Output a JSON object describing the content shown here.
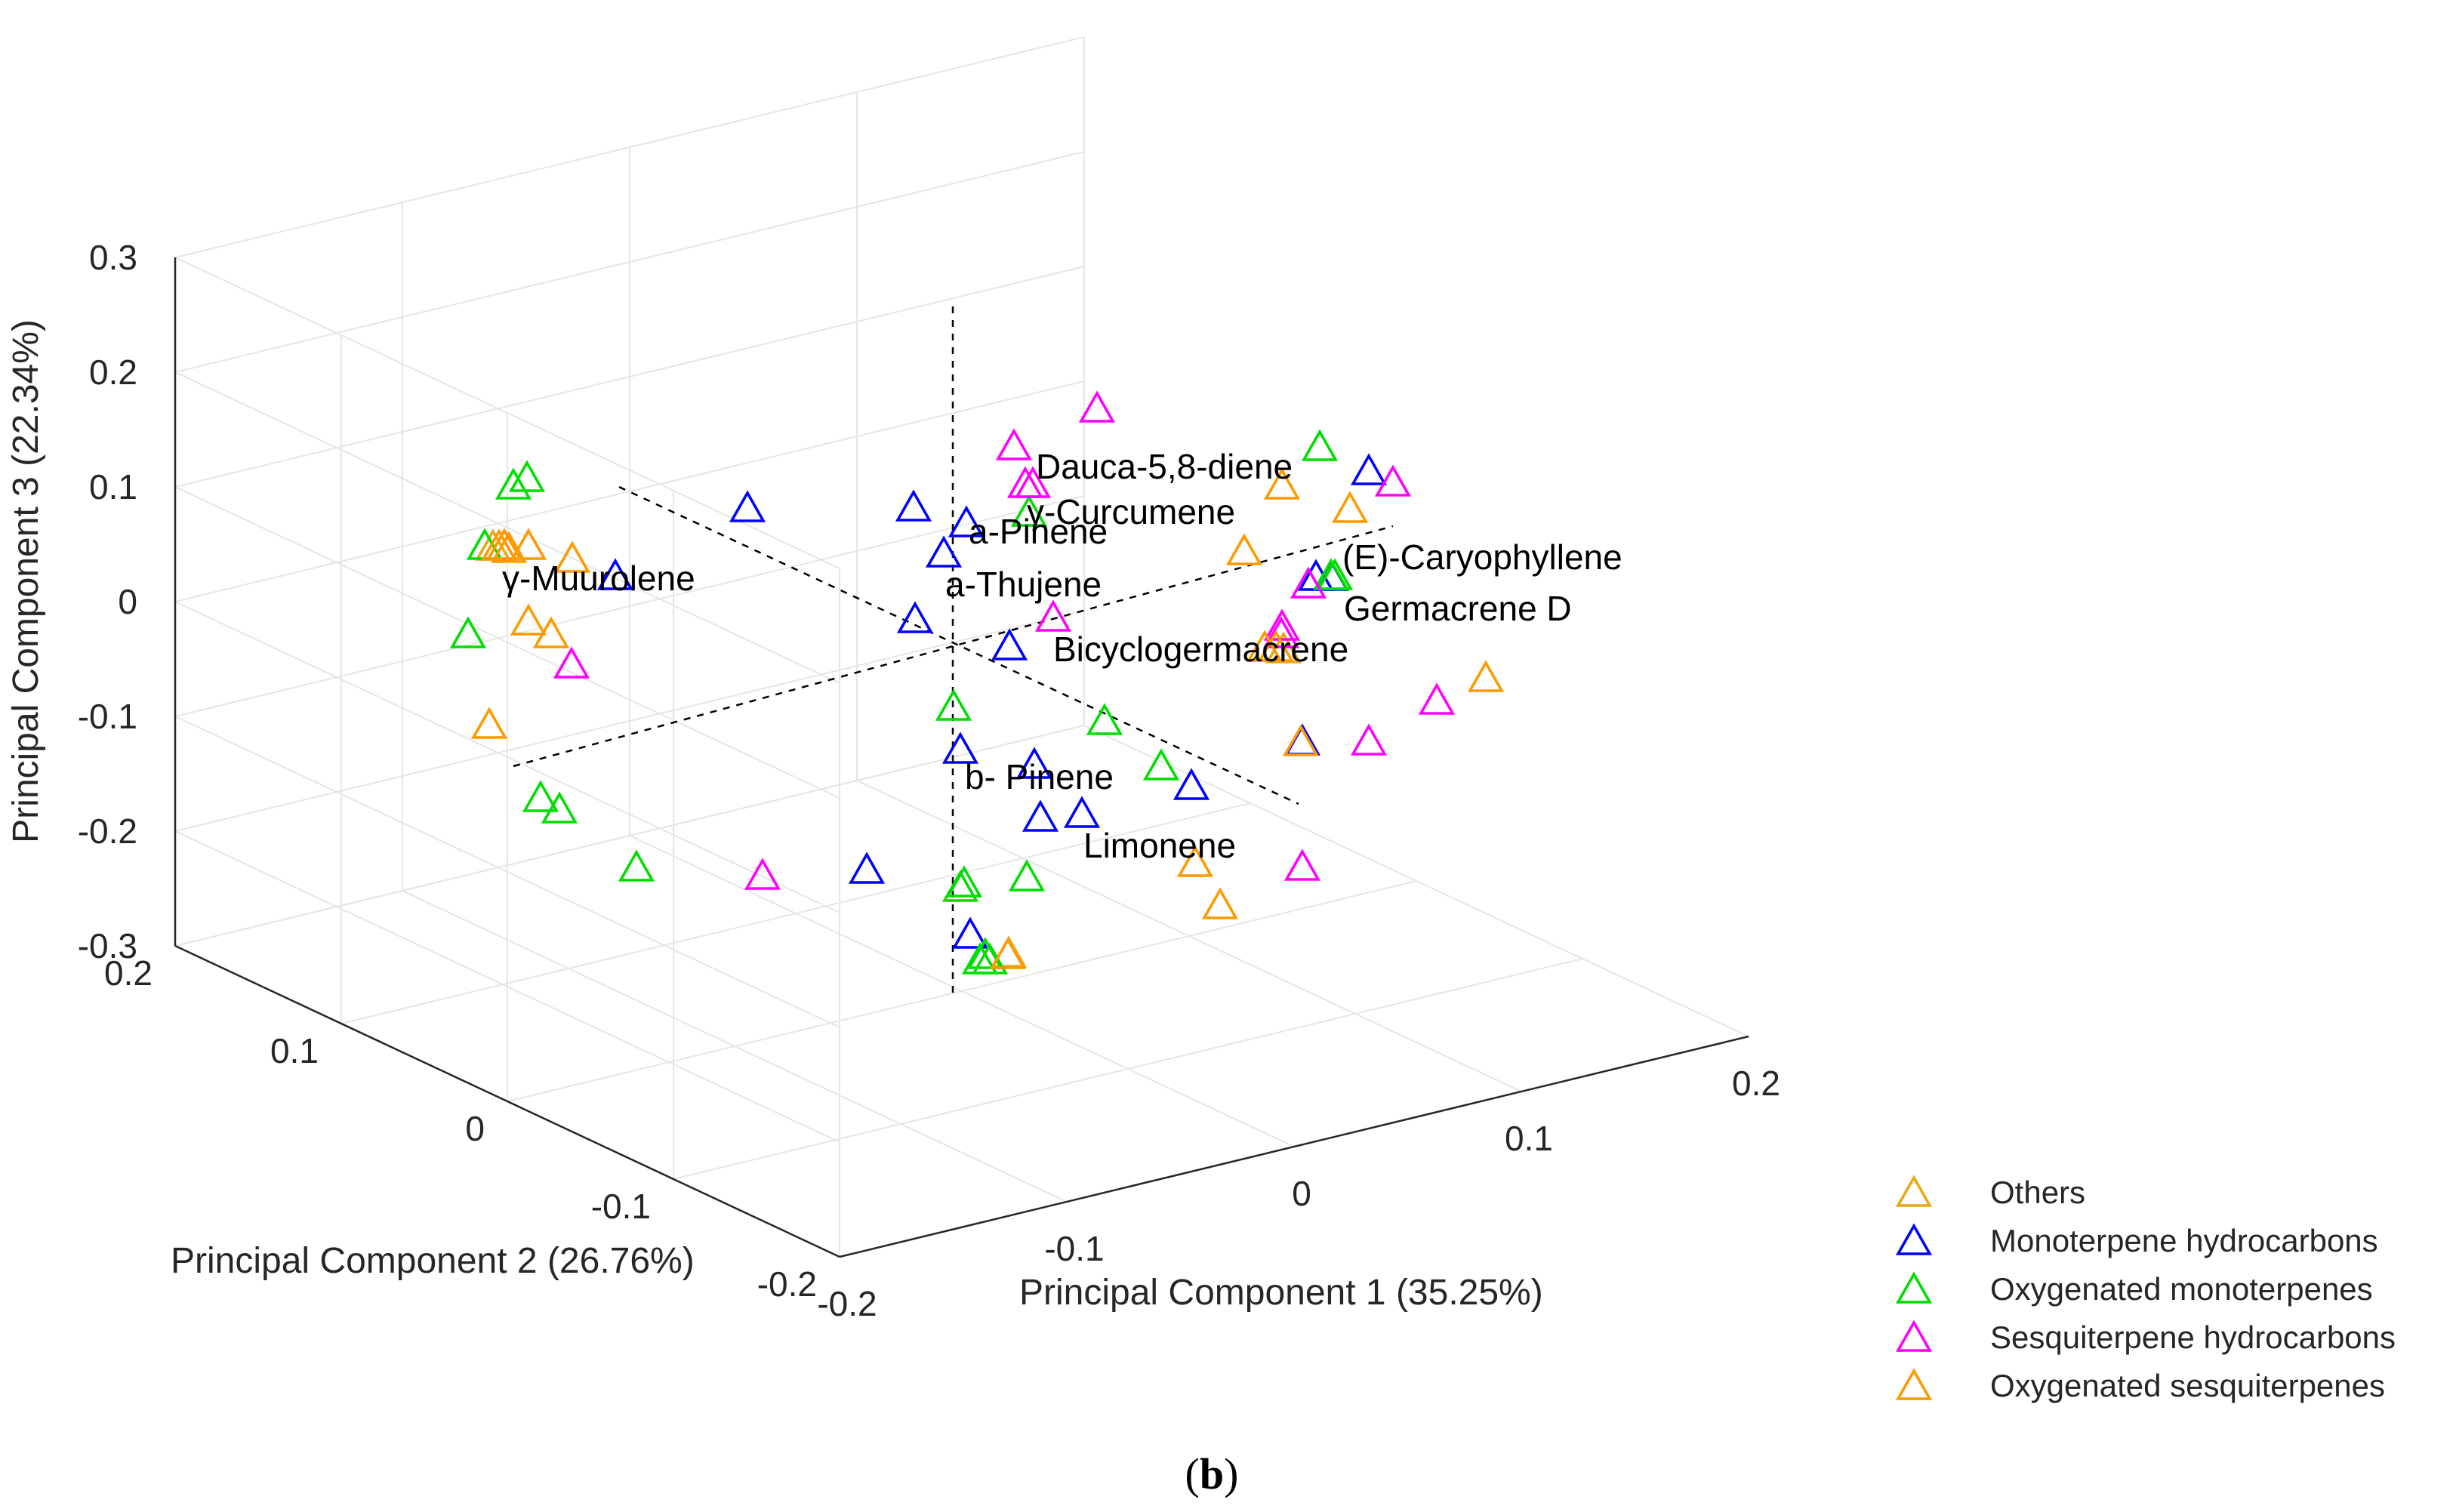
{
  "caption": {
    "open": "(",
    "letter": "b",
    "close": ")"
  },
  "chart_data": {
    "type": "scatter",
    "projection": "3d",
    "xlabel": "Principal Component 1 (35.25%)",
    "ylabel": "Principal Component 2 (26.76%)",
    "zlabel": "Principal Component 3 (22.34%)",
    "xlim": [
      -0.2,
      0.2
    ],
    "ylim": [
      -0.2,
      0.2
    ],
    "zlim": [
      -0.3,
      0.3
    ],
    "x_ticks": [
      "-0.2",
      "-0.1",
      "0",
      "0.1",
      "0.2"
    ],
    "y_ticks": [
      "-0.2",
      "-0.1",
      "0",
      "0.1",
      "0.2"
    ],
    "z_ticks": [
      "-0.3",
      "-0.2",
      "-0.1",
      "0",
      "0.1",
      "0.2",
      "0.3"
    ],
    "grid": true,
    "marker": "triangle-open",
    "legend_position": "bottom-right",
    "series": [
      {
        "name": "Others",
        "color": "#E8A817",
        "points": []
      },
      {
        "name": "Monoterpene hydrocarbons",
        "color": "#0000FF",
        "points": []
      },
      {
        "name": "Oxygenated monoterpenes",
        "color": "#00DD00",
        "points": []
      },
      {
        "name": "Sesquiterpene hydrocarbons",
        "color": "#FF00FF",
        "points": []
      },
      {
        "name": "Oxygenated sesquiterpenes",
        "color": "#FF9900",
        "points": []
      }
    ],
    "annotations": [
      "Dauca-5,8-diene",
      "γ-Curcumene",
      "a-Pinene",
      "a-Thujene",
      "(E)-Caryophyllene",
      "Germacrene D",
      "Bicyclogermacrene",
      "γ-Muurolene",
      "b- Pinene",
      "Limonene"
    ]
  }
}
